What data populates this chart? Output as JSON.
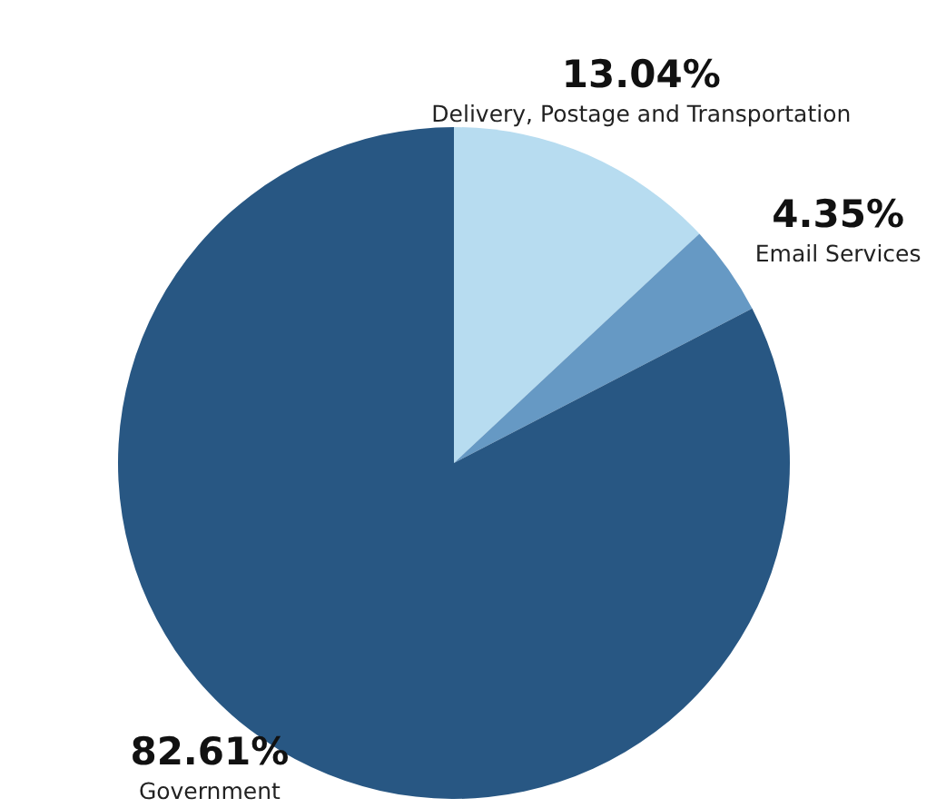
{
  "chart_data": {
    "type": "pie",
    "categories": [
      "Delivery, Postage and Transportation",
      "Email Services",
      "Government"
    ],
    "values": [
      13.04,
      4.35,
      82.61
    ],
    "value_labels": [
      "13.04%",
      "4.35%",
      "82.61%"
    ],
    "colors": [
      "#b7dcf0",
      "#6699c4",
      "#285783"
    ]
  }
}
